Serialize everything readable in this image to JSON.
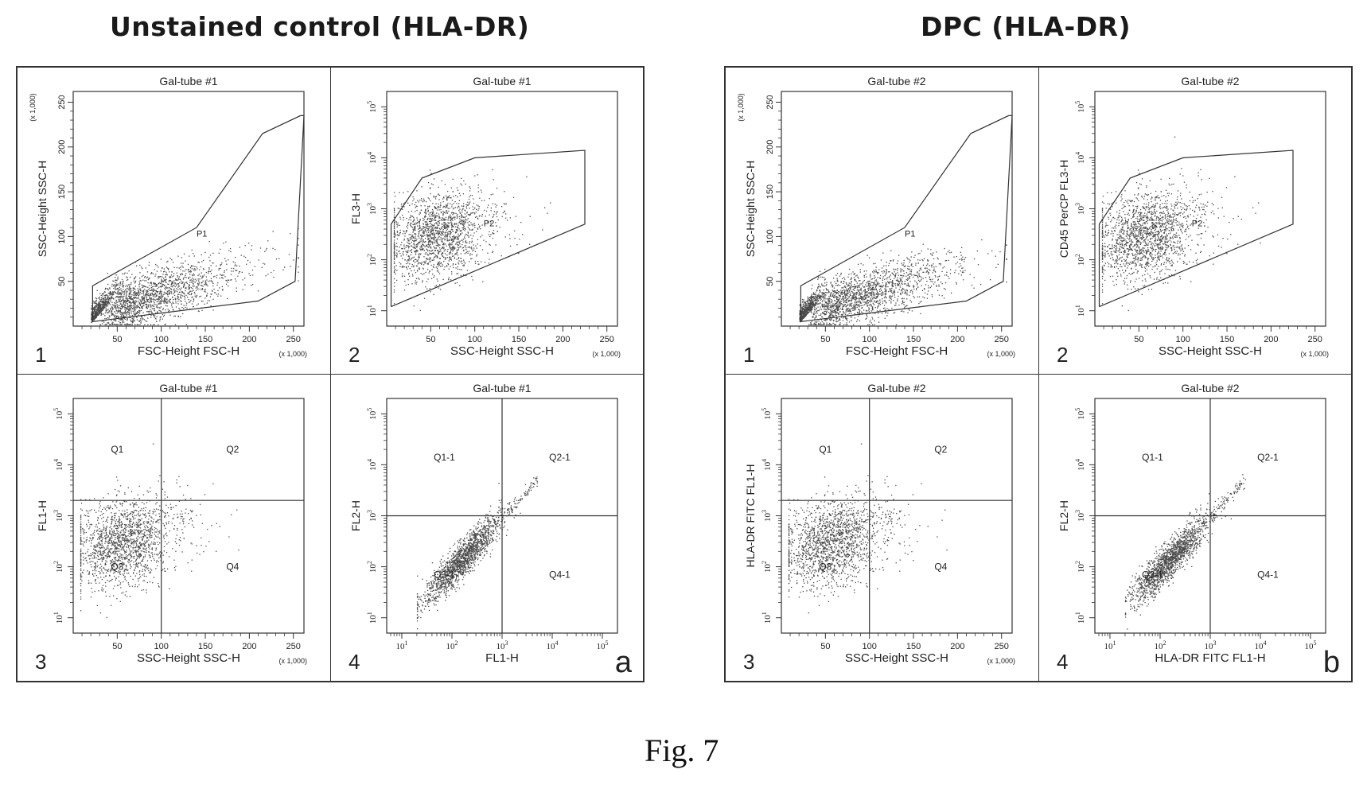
{
  "figure": {
    "caption": "Fig. 7",
    "title_a": "Unstained control (HLA-DR)",
    "title_b": "DPC (HLA-DR)",
    "letter_a": "a",
    "letter_b": "b",
    "scale_note": "(x 1,000)"
  },
  "chart_data": [
    {
      "id": "a1",
      "type": "scatter",
      "block": "a",
      "number": "1",
      "title": "Gal-tube #1",
      "xlabel": "FSC-Height FSC-H",
      "ylabel": "SSC-Height SSC-H",
      "xscale": "linear",
      "yscale": "linear",
      "xlim": [
        0,
        262
      ],
      "ylim": [
        0,
        262
      ],
      "xticks": [
        50,
        100,
        150,
        200,
        250
      ],
      "yticks": [
        50,
        100,
        150,
        200,
        250
      ],
      "x_multiplier": "x 1,000",
      "y_multiplier": "x 1,000",
      "gate": {
        "name": "P1",
        "label_at": [
          140,
          100
        ],
        "vertices": [
          [
            22,
            5
          ],
          [
            22,
            45
          ],
          [
            140,
            110
          ],
          [
            215,
            215
          ],
          [
            258,
            235
          ],
          [
            262,
            235
          ],
          [
            252,
            50
          ],
          [
            210,
            28
          ],
          [
            22,
            5
          ]
        ]
      },
      "quadrants": null
    },
    {
      "id": "a2",
      "type": "scatter",
      "block": "a",
      "number": "2",
      "title": "Gal-tube #1",
      "xlabel": "SSC-Height SSC-H",
      "ylabel": "FL3-H",
      "xscale": "linear",
      "yscale": "log",
      "xlim": [
        0,
        262
      ],
      "ylim": [
        5,
        200000
      ],
      "xticks": [
        50,
        100,
        150,
        200,
        250
      ],
      "yticks": [
        "10^1",
        "10^2",
        "10^3",
        "10^4",
        "10^5"
      ],
      "x_multiplier": "x 1,000",
      "gate": {
        "name": "P2",
        "label_at": [
          110,
          450
        ],
        "vertices": [
          [
            5,
            12
          ],
          [
            5,
            500
          ],
          [
            40,
            4000
          ],
          [
            100,
            10000
          ],
          [
            225,
            14000
          ],
          [
            225,
            500
          ],
          [
            5,
            12
          ]
        ]
      },
      "quadrants": null
    },
    {
      "id": "a3",
      "type": "scatter",
      "block": "a",
      "number": "3",
      "title": "Gal-tube #1",
      "xlabel": "SSC-Height SSC-H",
      "ylabel": "FL1-H",
      "xscale": "linear",
      "yscale": "log",
      "xlim": [
        0,
        262
      ],
      "ylim": [
        5,
        200000
      ],
      "xticks": [
        50,
        100,
        150,
        200,
        250
      ],
      "yticks": [
        "10^1",
        "10^2",
        "10^3",
        "10^4",
        "10^5"
      ],
      "x_multiplier": "x 1,000",
      "gate": null,
      "quadrants": {
        "x": 100,
        "y": 2000,
        "labels": [
          "Q1",
          "Q2",
          "Q3",
          "Q4"
        ]
      }
    },
    {
      "id": "a4",
      "type": "scatter",
      "block": "a",
      "number": "4",
      "title": "Gal-tube #1",
      "xlabel": "FL1-H",
      "ylabel": "FL2-H",
      "xscale": "log",
      "yscale": "log",
      "xlim": [
        5,
        200000
      ],
      "ylim": [
        5,
        200000
      ],
      "xticks": [
        "10^1",
        "10^2",
        "10^3",
        "10^4",
        "10^5"
      ],
      "yticks": [
        "10^1",
        "10^2",
        "10^3",
        "10^4",
        "10^5"
      ],
      "gate": null,
      "quadrants": {
        "x": 1000,
        "y": 1000,
        "labels": [
          "Q1-1",
          "Q2-1",
          "Q3-1",
          "Q4-1"
        ]
      }
    },
    {
      "id": "b1",
      "type": "scatter",
      "block": "b",
      "number": "1",
      "title": "Gal-tube #2",
      "xlabel": "FSC-Height FSC-H",
      "ylabel": "SSC-Height SSC-H",
      "xscale": "linear",
      "yscale": "linear",
      "xlim": [
        0,
        262
      ],
      "ylim": [
        0,
        262
      ],
      "xticks": [
        50,
        100,
        150,
        200,
        250
      ],
      "yticks": [
        50,
        100,
        150,
        200,
        250
      ],
      "x_multiplier": "x 1,000",
      "y_multiplier": "x 1,000",
      "gate": {
        "name": "P1",
        "label_at": [
          140,
          100
        ],
        "vertices": [
          [
            22,
            5
          ],
          [
            22,
            45
          ],
          [
            140,
            110
          ],
          [
            215,
            215
          ],
          [
            258,
            235
          ],
          [
            262,
            235
          ],
          [
            252,
            50
          ],
          [
            210,
            28
          ],
          [
            22,
            5
          ]
        ]
      },
      "quadrants": null
    },
    {
      "id": "b2",
      "type": "scatter",
      "block": "b",
      "number": "2",
      "title": "Gal-tube #2",
      "xlabel": "SSC-Height SSC-H",
      "ylabel": "CD45 PerCP FL3-H",
      "xscale": "linear",
      "yscale": "log",
      "xlim": [
        0,
        262
      ],
      "ylim": [
        5,
        200000
      ],
      "xticks": [
        50,
        100,
        150,
        200,
        250
      ],
      "yticks": [
        "10^1",
        "10^2",
        "10^3",
        "10^4",
        "10^5"
      ],
      "x_multiplier": "x 1,000",
      "gate": {
        "name": "P2",
        "label_at": [
          110,
          450
        ],
        "vertices": [
          [
            5,
            12
          ],
          [
            5,
            500
          ],
          [
            40,
            4000
          ],
          [
            100,
            10000
          ],
          [
            225,
            14000
          ],
          [
            225,
            500
          ],
          [
            5,
            12
          ]
        ]
      },
      "quadrants": null
    },
    {
      "id": "b3",
      "type": "scatter",
      "block": "b",
      "number": "3",
      "title": "Gal-tube #2",
      "xlabel": "SSC-Height SSC-H",
      "ylabel": "HLA-DR FITC FL1-H",
      "xscale": "linear",
      "yscale": "log",
      "xlim": [
        0,
        262
      ],
      "ylim": [
        5,
        200000
      ],
      "xticks": [
        50,
        100,
        150,
        200,
        250
      ],
      "yticks": [
        "10^1",
        "10^2",
        "10^3",
        "10^4",
        "10^5"
      ],
      "x_multiplier": "x 1,000",
      "gate": null,
      "quadrants": {
        "x": 100,
        "y": 2000,
        "labels": [
          "Q1",
          "Q2",
          "Q3",
          "Q4"
        ]
      }
    },
    {
      "id": "b4",
      "type": "scatter",
      "block": "b",
      "number": "4",
      "title": "Gal-tube #2",
      "xlabel": "HLA-DR FITC FL1-H",
      "ylabel": "FL2-H",
      "xscale": "log",
      "yscale": "log",
      "xlim": [
        5,
        200000
      ],
      "ylim": [
        5,
        200000
      ],
      "xticks": [
        "10^1",
        "10^2",
        "10^3",
        "10^4",
        "10^5"
      ],
      "yticks": [
        "10^1",
        "10^2",
        "10^3",
        "10^4",
        "10^5"
      ],
      "gate": null,
      "quadrants": {
        "x": 1000,
        "y": 1000,
        "labels": [
          "Q1-1",
          "Q2-1",
          "Q3-1",
          "Q4-1"
        ]
      }
    }
  ]
}
